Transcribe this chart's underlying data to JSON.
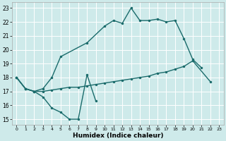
{
  "xlabel": "Humidex (Indice chaleur)",
  "bg_color": "#ceeaea",
  "grid_color": "#ffffff",
  "line_color": "#1a6b6b",
  "xlim": [
    -0.5,
    23.5
  ],
  "ylim": [
    14.6,
    23.4
  ],
  "xticks": [
    0,
    1,
    2,
    3,
    4,
    5,
    6,
    7,
    8,
    9,
    10,
    11,
    12,
    13,
    14,
    15,
    16,
    17,
    18,
    19,
    20,
    21,
    22,
    23
  ],
  "yticks": [
    15,
    16,
    17,
    18,
    19,
    20,
    21,
    22,
    23
  ],
  "line1_x": [
    0,
    1,
    2,
    3,
    4,
    5,
    6,
    7,
    8,
    9
  ],
  "line1_y": [
    18.0,
    17.2,
    17.0,
    16.6,
    15.8,
    15.5,
    15.0,
    15.0,
    18.2,
    16.3
  ],
  "line2_x": [
    0,
    1,
    2,
    3,
    4,
    5,
    6,
    7,
    8,
    9,
    10,
    11,
    12,
    13,
    14,
    15,
    16,
    17,
    18,
    19,
    20,
    22
  ],
  "line2_y": [
    18.0,
    17.2,
    17.0,
    17.0,
    17.1,
    17.2,
    17.3,
    17.3,
    17.4,
    17.5,
    17.6,
    17.7,
    17.8,
    17.9,
    18.0,
    18.1,
    18.3,
    18.4,
    18.6,
    18.8,
    19.2,
    17.7
  ],
  "line3_x": [
    0,
    1,
    2,
    3,
    4,
    5,
    8,
    10,
    11,
    12,
    13,
    14,
    15,
    16,
    17,
    18,
    19,
    20,
    21
  ],
  "line3_y": [
    18.0,
    17.2,
    17.0,
    17.2,
    18.0,
    19.5,
    20.5,
    21.7,
    22.1,
    21.9,
    23.0,
    22.1,
    22.1,
    22.2,
    22.0,
    22.1,
    20.8,
    19.3,
    18.7
  ],
  "marker_size": 2.5,
  "linewidth": 1.0
}
